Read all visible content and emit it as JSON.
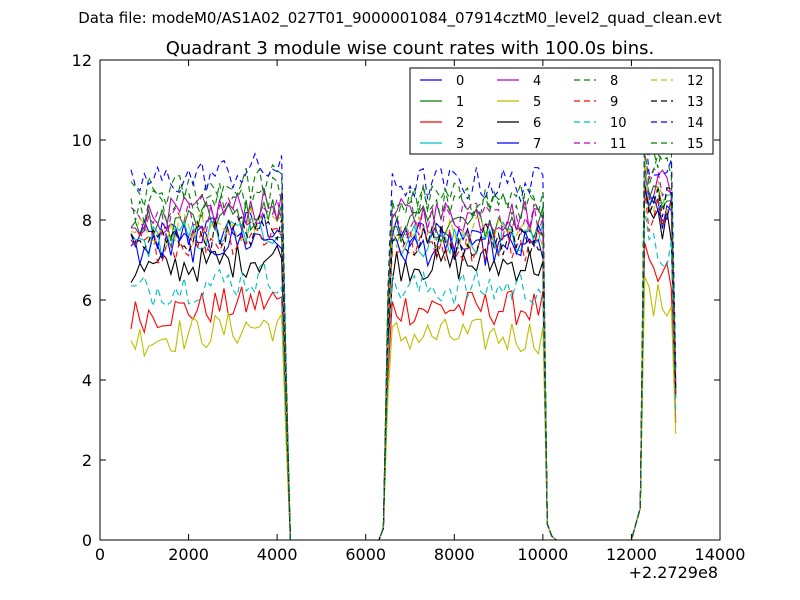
{
  "suptitle": "Data file: modeM0/AS1A02_027T01_9000001084_07914cztM0_level2_quad_clean.evt",
  "chart_data": {
    "type": "line",
    "title": "Quadrant 3 module wise count rates with 100.0s bins.",
    "xlabel": "",
    "ylabel": "",
    "x_offset_label": "+2.2729e8",
    "xlim": [
      0,
      14000
    ],
    "ylim": [
      0,
      12
    ],
    "xticks": [
      0,
      2000,
      4000,
      6000,
      8000,
      10000,
      12000,
      14000
    ],
    "yticks": [
      0,
      2,
      4,
      6,
      8,
      10,
      12
    ],
    "grid": false,
    "legend_position": "top-right",
    "legend_columns": 4,
    "segments": [
      {
        "start": 700,
        "end": 4000,
        "ramp_down_to": 4300
      },
      {
        "start": 6600,
        "end": 10000,
        "ramp_up_from": 6300,
        "ramp_down_to": 10300
      },
      {
        "start": 12400,
        "end": 12900,
        "ramp_up_from": 12000,
        "ramp_down_to": 13000
      }
    ],
    "series": [
      {
        "name": "0",
        "color": "#0000ff",
        "dash": "solid",
        "level_seg1": 7.5,
        "level_seg2": 7.6,
        "level_seg3": 8.3
      },
      {
        "name": "1",
        "color": "#008000",
        "dash": "solid",
        "level_seg1": 7.8,
        "level_seg2": 7.9,
        "level_seg3": 8.5
      },
      {
        "name": "2",
        "color": "#ff0000",
        "dash": "solid",
        "level_seg1": 5.6,
        "level_seg2": 5.8,
        "level_seg3": 6.5
      },
      {
        "name": "3",
        "color": "#00bfbf",
        "dash": "solid",
        "level_seg1": 7.4,
        "level_seg2": 7.5,
        "level_seg3": 8.4
      },
      {
        "name": "4",
        "color": "#bf00bf",
        "dash": "solid",
        "level_seg1": 8.0,
        "level_seg2": 8.1,
        "level_seg3": 8.9
      },
      {
        "name": "5",
        "color": "#bfbf00",
        "dash": "solid",
        "level_seg1": 5.0,
        "level_seg2": 5.1,
        "level_seg3": 5.9
      },
      {
        "name": "6",
        "color": "#000000",
        "dash": "solid",
        "level_seg1": 6.7,
        "level_seg2": 6.9,
        "level_seg3": 7.9
      },
      {
        "name": "7",
        "color": "#0000ff",
        "dash": "solid",
        "level_seg1": 7.2,
        "level_seg2": 7.3,
        "level_seg3": 8.1
      },
      {
        "name": "8",
        "color": "#008000",
        "dash": "dashed",
        "level_seg1": 8.6,
        "level_seg2": 8.5,
        "level_seg3": 9.4
      },
      {
        "name": "9",
        "color": "#ff0000",
        "dash": "dashed",
        "level_seg1": 7.3,
        "level_seg2": 7.4,
        "level_seg3": 8.2
      },
      {
        "name": "10",
        "color": "#00bfbf",
        "dash": "dashed",
        "level_seg1": 6.2,
        "level_seg2": 6.3,
        "level_seg3": 7.2
      },
      {
        "name": "11",
        "color": "#bf00bf",
        "dash": "dashed",
        "level_seg1": 7.9,
        "level_seg2": 8.0,
        "level_seg3": 8.8
      },
      {
        "name": "12",
        "color": "#bfbf00",
        "dash": "dashed",
        "level_seg1": 7.6,
        "level_seg2": 7.7,
        "level_seg3": 8.5
      },
      {
        "name": "13",
        "color": "#000000",
        "dash": "dashed",
        "level_seg1": 7.4,
        "level_seg2": 7.5,
        "level_seg3": 8.3
      },
      {
        "name": "14",
        "color": "#0000ff",
        "dash": "dashed",
        "level_seg1": 8.9,
        "level_seg2": 8.9,
        "level_seg3": 9.6
      },
      {
        "name": "15",
        "color": "#008000",
        "dash": "dashed",
        "level_seg1": 8.3,
        "level_seg2": 8.4,
        "level_seg3": 9.2
      }
    ]
  }
}
